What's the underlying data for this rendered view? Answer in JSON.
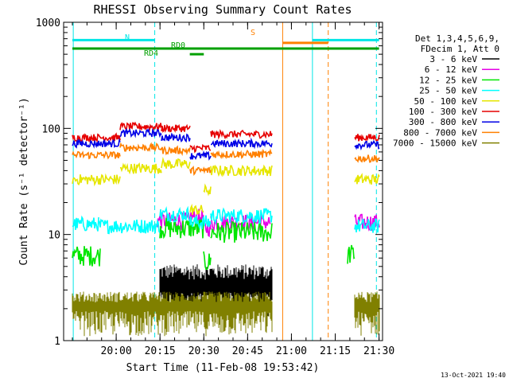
{
  "chart_data": {
    "type": "line",
    "title": "RHESSI Observing Summary Count Rates",
    "xlabel": "Start Time (11-Feb-08 19:53:42)",
    "ylabel": "Count Rate (s⁻¹ detector⁻¹)",
    "yscale": "log",
    "ylim": [
      1,
      1000
    ],
    "y_ticks": [
      1,
      10,
      100,
      1000
    ],
    "y_tick_labels": [
      "1",
      "10",
      "100",
      "1000"
    ],
    "xlim": [
      19.7,
      21.52
    ],
    "x_ticks": [
      20.0,
      20.25,
      20.5,
      20.75,
      21.0,
      21.25,
      21.5
    ],
    "x_tick_labels": [
      "20:00",
      "20:15",
      "20:30",
      "20:45",
      "21:00",
      "21:15",
      "21:30"
    ],
    "legend_header": [
      "Det 1,3,4,5,6,9,",
      "FDecim 1, Att 0"
    ],
    "legend_position": "right",
    "footer": "13-Oct-2021 19:40",
    "series": [
      {
        "name": "3 - 6 keV",
        "color": "#000000",
        "noise": 0.5,
        "segments": [
          [
            20.25,
            20.89,
            3.0
          ]
        ]
      },
      {
        "name": "6 - 12 keV",
        "color": "#e600e6",
        "noise": 0.08,
        "segments": [
          [
            20.23,
            20.42,
            13.5
          ],
          [
            20.42,
            20.5,
            14.5
          ],
          [
            20.5,
            20.54,
            11.5
          ],
          [
            20.54,
            20.88,
            13.0
          ],
          [
            21.36,
            21.5,
            13.0
          ]
        ]
      },
      {
        "name": "12 - 25 keV",
        "color": "#00e600",
        "noise": 0.1,
        "segments": [
          [
            19.75,
            19.91,
            6.3
          ],
          [
            20.25,
            20.5,
            11.5
          ],
          [
            20.5,
            20.54,
            5.5
          ],
          [
            20.54,
            20.89,
            10.5
          ],
          [
            21.32,
            21.36,
            6.5
          ]
        ]
      },
      {
        "name": "25 - 50 keV",
        "color": "#00ffff",
        "noise": 0.07,
        "segments": [
          [
            19.75,
            19.9,
            12.5
          ],
          [
            19.9,
            20.25,
            12.0
          ],
          [
            20.25,
            20.42,
            15.5
          ],
          [
            20.42,
            20.54,
            13.0
          ],
          [
            20.54,
            20.89,
            15.0
          ],
          [
            21.36,
            21.5,
            12.0
          ]
        ]
      },
      {
        "name": "50 - 100 keV",
        "color": "#e6e600",
        "noise": 0.05,
        "segments": [
          [
            19.75,
            20.02,
            33.0
          ],
          [
            20.02,
            20.26,
            42.0
          ],
          [
            20.26,
            20.42,
            46.0
          ],
          [
            20.42,
            20.5,
            17.0
          ],
          [
            20.5,
            20.54,
            26.0
          ],
          [
            20.54,
            20.89,
            40.0
          ],
          [
            21.36,
            21.5,
            33.0
          ]
        ]
      },
      {
        "name": "100 - 300 keV",
        "color": "#e60000",
        "noise": 0.035,
        "segments": [
          [
            19.75,
            20.02,
            82.0
          ],
          [
            20.02,
            20.26,
            104.0
          ],
          [
            20.26,
            20.42,
            100.0
          ],
          [
            20.42,
            20.54,
            65.0
          ],
          [
            20.54,
            20.89,
            88.0
          ],
          [
            21.36,
            21.5,
            82.0
          ]
        ]
      },
      {
        "name": "300 - 800 keV",
        "color": "#0000e6",
        "noise": 0.035,
        "segments": [
          [
            19.75,
            20.02,
            72.0
          ],
          [
            20.02,
            20.26,
            90.0
          ],
          [
            20.26,
            20.42,
            82.0
          ],
          [
            20.42,
            20.54,
            55.0
          ],
          [
            20.54,
            20.89,
            72.0
          ],
          [
            21.36,
            21.5,
            70.0
          ]
        ]
      },
      {
        "name": "800 - 7000 keV",
        "color": "#ff8000",
        "noise": 0.035,
        "segments": [
          [
            19.75,
            20.02,
            56.0
          ],
          [
            20.02,
            20.26,
            66.0
          ],
          [
            20.26,
            20.42,
            62.0
          ],
          [
            20.42,
            20.54,
            40.0
          ],
          [
            20.54,
            20.89,
            57.0
          ],
          [
            21.36,
            21.5,
            52.0
          ]
        ]
      },
      {
        "name": "7000 - 15000 keV",
        "color": "#808000",
        "noise": 0.3,
        "segments": [
          [
            19.75,
            20.89,
            2.0
          ],
          [
            21.36,
            21.5,
            2.0
          ]
        ]
      }
    ],
    "flag_markers": [
      {
        "label": "N",
        "color": "#00e6e6",
        "y": 680,
        "ranges": [
          [
            19.75,
            20.22
          ],
          [
            21.12,
            21.5
          ]
        ]
      },
      {
        "label": "S",
        "color": "#ff8000",
        "y": 640,
        "ranges": [
          [
            20.95,
            21.21
          ]
        ]
      },
      {
        "label": "RD0",
        "color": "#00a000",
        "y": 565,
        "ranges": [
          [
            19.75,
            21.5
          ]
        ]
      },
      {
        "label": "RD4",
        "color": "#00a000",
        "y": 500,
        "ranges": [
          [
            20.42,
            20.5
          ]
        ]
      }
    ],
    "vertical_lines": [
      {
        "x": 19.755,
        "color": "#00e6e6",
        "style": "solid"
      },
      {
        "x": 20.22,
        "color": "#00e6e6",
        "style": "dashed"
      },
      {
        "x": 20.95,
        "color": "#ff8000",
        "style": "solid"
      },
      {
        "x": 21.12,
        "color": "#00e6e6",
        "style": "solid"
      },
      {
        "x": 21.21,
        "color": "#ff8000",
        "style": "dashed"
      },
      {
        "x": 21.485,
        "color": "#00e6e6",
        "style": "dashed"
      }
    ]
  }
}
